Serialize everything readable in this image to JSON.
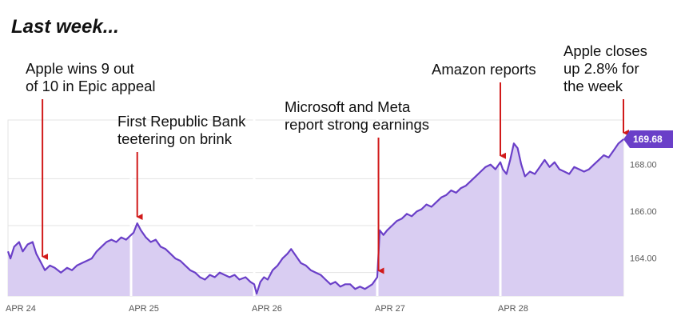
{
  "header": {
    "title": "Last week..."
  },
  "colors": {
    "line": "#6a3fc8",
    "area": "#d9cdf2",
    "arrow": "#d11a1a",
    "badge": "#6a3fc8",
    "grid": "#e3e3e3",
    "session_divider": "#ffffff"
  },
  "chart_data": {
    "type": "area",
    "title": "",
    "xlabel": "",
    "ylabel": "",
    "x_ticks": [
      "APR 24",
      "APR 25",
      "APR 26",
      "APR 27",
      "APR 28"
    ],
    "y_ticks": [
      "164.00",
      "166.00",
      "168.00"
    ],
    "ylim": [
      163.0,
      170.5
    ],
    "last_price": "169.68",
    "grid": true,
    "series": [
      {
        "values": [
          [
            0.0,
            164.9
          ],
          [
            0.02,
            164.6
          ],
          [
            0.05,
            165.1
          ],
          [
            0.09,
            165.3
          ],
          [
            0.12,
            164.9
          ],
          [
            0.16,
            165.2
          ],
          [
            0.2,
            165.3
          ],
          [
            0.23,
            164.8
          ],
          [
            0.27,
            164.4
          ],
          [
            0.3,
            164.1
          ],
          [
            0.34,
            164.3
          ],
          [
            0.38,
            164.2
          ],
          [
            0.43,
            164.0
          ],
          [
            0.48,
            164.2
          ],
          [
            0.52,
            164.1
          ],
          [
            0.56,
            164.3
          ],
          [
            0.6,
            164.4
          ],
          [
            0.64,
            164.5
          ],
          [
            0.68,
            164.6
          ],
          [
            0.72,
            164.9
          ],
          [
            0.76,
            165.1
          ],
          [
            0.8,
            165.3
          ],
          [
            0.84,
            165.4
          ],
          [
            0.88,
            165.3
          ],
          [
            0.92,
            165.5
          ],
          [
            0.96,
            165.4
          ],
          [
            1.0,
            165.6
          ],
          [
            1.02,
            165.7
          ],
          [
            1.05,
            166.1
          ],
          [
            1.08,
            165.8
          ],
          [
            1.12,
            165.5
          ],
          [
            1.16,
            165.3
          ],
          [
            1.2,
            165.4
          ],
          [
            1.24,
            165.1
          ],
          [
            1.28,
            165.0
          ],
          [
            1.32,
            164.8
          ],
          [
            1.36,
            164.6
          ],
          [
            1.4,
            164.5
          ],
          [
            1.44,
            164.3
          ],
          [
            1.48,
            164.1
          ],
          [
            1.52,
            164.0
          ],
          [
            1.56,
            163.8
          ],
          [
            1.6,
            163.7
          ],
          [
            1.64,
            163.9
          ],
          [
            1.68,
            163.8
          ],
          [
            1.72,
            164.0
          ],
          [
            1.76,
            163.9
          ],
          [
            1.8,
            163.8
          ],
          [
            1.84,
            163.9
          ],
          [
            1.88,
            163.7
          ],
          [
            1.93,
            163.8
          ],
          [
            1.97,
            163.6
          ],
          [
            2.0,
            163.5
          ],
          [
            2.02,
            163.1
          ],
          [
            2.05,
            163.6
          ],
          [
            2.08,
            163.8
          ],
          [
            2.11,
            163.7
          ],
          [
            2.15,
            164.1
          ],
          [
            2.19,
            164.3
          ],
          [
            2.23,
            164.6
          ],
          [
            2.27,
            164.8
          ],
          [
            2.3,
            165.0
          ],
          [
            2.34,
            164.7
          ],
          [
            2.38,
            164.4
          ],
          [
            2.42,
            164.3
          ],
          [
            2.46,
            164.1
          ],
          [
            2.5,
            164.0
          ],
          [
            2.54,
            163.9
          ],
          [
            2.58,
            163.7
          ],
          [
            2.62,
            163.5
          ],
          [
            2.66,
            163.6
          ],
          [
            2.7,
            163.4
          ],
          [
            2.74,
            163.5
          ],
          [
            2.78,
            163.5
          ],
          [
            2.82,
            163.3
          ],
          [
            2.86,
            163.4
          ],
          [
            2.9,
            163.3
          ],
          [
            2.93,
            163.4
          ],
          [
            2.96,
            163.5
          ],
          [
            3.0,
            163.8
          ],
          [
            3.02,
            165.8
          ],
          [
            3.05,
            165.6
          ],
          [
            3.08,
            165.8
          ],
          [
            3.12,
            166.0
          ],
          [
            3.16,
            166.2
          ],
          [
            3.2,
            166.3
          ],
          [
            3.24,
            166.5
          ],
          [
            3.28,
            166.4
          ],
          [
            3.32,
            166.6
          ],
          [
            3.36,
            166.7
          ],
          [
            3.4,
            166.9
          ],
          [
            3.44,
            166.8
          ],
          [
            3.48,
            167.0
          ],
          [
            3.52,
            167.2
          ],
          [
            3.56,
            167.3
          ],
          [
            3.6,
            167.5
          ],
          [
            3.64,
            167.4
          ],
          [
            3.68,
            167.6
          ],
          [
            3.72,
            167.7
          ],
          [
            3.76,
            167.9
          ],
          [
            3.8,
            168.1
          ],
          [
            3.84,
            168.3
          ],
          [
            3.88,
            168.5
          ],
          [
            3.92,
            168.6
          ],
          [
            3.96,
            168.4
          ],
          [
            4.0,
            168.7
          ],
          [
            4.02,
            168.4
          ],
          [
            4.05,
            168.2
          ],
          [
            4.08,
            168.8
          ],
          [
            4.11,
            169.5
          ],
          [
            4.14,
            169.3
          ],
          [
            4.17,
            168.6
          ],
          [
            4.2,
            168.1
          ],
          [
            4.24,
            168.3
          ],
          [
            4.28,
            168.2
          ],
          [
            4.32,
            168.5
          ],
          [
            4.36,
            168.8
          ],
          [
            4.4,
            168.5
          ],
          [
            4.44,
            168.7
          ],
          [
            4.48,
            168.4
          ],
          [
            4.52,
            168.3
          ],
          [
            4.56,
            168.2
          ],
          [
            4.6,
            168.5
          ],
          [
            4.64,
            168.4
          ],
          [
            4.68,
            168.3
          ],
          [
            4.72,
            168.4
          ],
          [
            4.76,
            168.6
          ],
          [
            4.8,
            168.8
          ],
          [
            4.84,
            169.0
          ],
          [
            4.88,
            168.9
          ],
          [
            4.92,
            169.2
          ],
          [
            4.96,
            169.5
          ],
          [
            5.0,
            169.68
          ]
        ]
      }
    ],
    "annotations": [
      {
        "lines": [
          "Apple wins 9 out",
          "of 10 in Epic appeal"
        ],
        "x": 0.28
      },
      {
        "lines": [
          "First Republic Bank",
          "teetering on brink"
        ],
        "x": 1.05
      },
      {
        "lines": [
          "Microsoft and Meta",
          "report strong earnings"
        ],
        "x": 3.01
      },
      {
        "lines": [
          "Amazon reports"
        ],
        "x": 4.0
      },
      {
        "lines": [
          "Apple closes",
          "up 2.8% for",
          "the week"
        ],
        "x": 5.0
      }
    ]
  }
}
